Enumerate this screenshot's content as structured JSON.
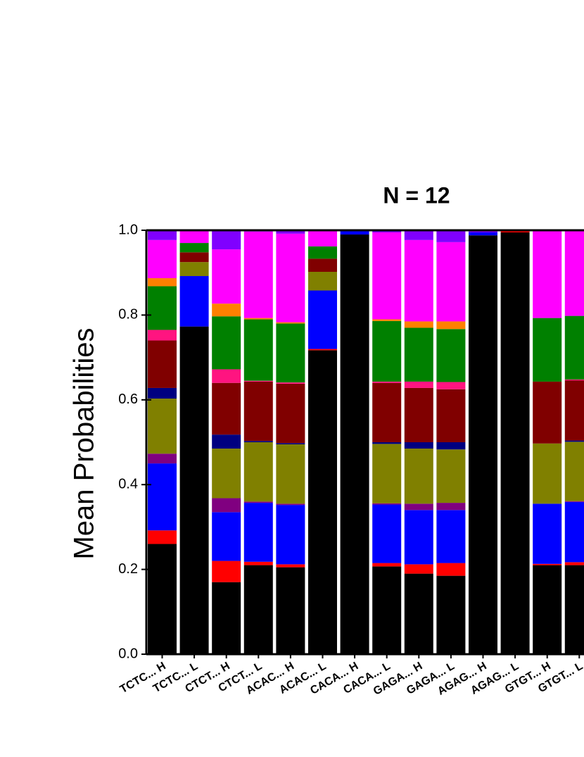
{
  "chart_data": {
    "type": "stacked_bar",
    "title": "N = 12",
    "ylabel": "Mean Probabilities",
    "categories": [
      "TCTC... H",
      "TCTC... L",
      "CTCT... H",
      "CTCT... L",
      "ACAC... H",
      "ACAC... L",
      "CACA... H",
      "CACA... L",
      "GAGA... H",
      "GAGA... L",
      "AGAG... H",
      "AGAG... L",
      "GTGT... H",
      "GTGT... L"
    ],
    "ylim": [
      0,
      1
    ],
    "yticks": [
      {
        "value": 0,
        "label": "0.0"
      },
      0.2,
      0.4,
      0.6,
      0.8,
      {
        "value": 1,
        "label": "1.0"
      }
    ],
    "series": [
      {
        "color": "#000000",
        "values": [
          0.26,
          0.773,
          0.17,
          0.21,
          0.205,
          0.717,
          0.99,
          0.207,
          0.19,
          0.185,
          0.988,
          0.995,
          0.21,
          0.21
        ]
      },
      {
        "color": "#ff0000",
        "values": [
          0.032,
          0,
          0.05,
          0.008,
          0.007,
          0.003,
          0,
          0.008,
          0.022,
          0.03,
          0,
          0.003,
          0.003,
          0.007
        ]
      },
      {
        "color": "#0000ff",
        "values": [
          0.158,
          0.119,
          0.115,
          0.139,
          0.14,
          0.138,
          0.008,
          0.138,
          0.128,
          0.125,
          0.007,
          0,
          0.142,
          0.142
        ]
      },
      {
        "color": "#800080",
        "values": [
          0.023,
          0,
          0.033,
          0.003,
          0.003,
          0,
          0,
          0.003,
          0.015,
          0.017,
          0,
          0,
          0,
          0.002
        ]
      },
      {
        "color": "#808000",
        "values": [
          0.13,
          0.033,
          0.117,
          0.14,
          0.14,
          0.044,
          0,
          0.14,
          0.13,
          0.126,
          0,
          0,
          0.142,
          0.14
        ]
      },
      {
        "color": "#000080",
        "values": [
          0.025,
          0,
          0.033,
          0.003,
          0.003,
          0,
          0,
          0.004,
          0.015,
          0.017,
          0,
          0,
          0,
          0.003
        ]
      },
      {
        "color": "#800000",
        "values": [
          0.112,
          0.023,
          0.122,
          0.14,
          0.14,
          0.031,
          0,
          0.14,
          0.128,
          0.125,
          0,
          0,
          0.146,
          0.142
        ]
      },
      {
        "color": "#ff1480",
        "values": [
          0.025,
          0,
          0.032,
          0.002,
          0.003,
          0,
          0,
          0.003,
          0.015,
          0.017,
          0,
          0,
          0,
          0.002
        ]
      },
      {
        "color": "#008000",
        "values": [
          0.103,
          0.022,
          0.125,
          0.145,
          0.139,
          0.029,
          0,
          0.143,
          0.127,
          0.125,
          0,
          0,
          0.15,
          0.15
        ]
      },
      {
        "color": "#ff8000",
        "values": [
          0.019,
          0,
          0.03,
          0.003,
          0.003,
          0,
          0,
          0.004,
          0.015,
          0.018,
          0,
          0,
          0,
          0
        ]
      },
      {
        "color": "#ff00ff",
        "values": [
          0.09,
          0.03,
          0.128,
          0.204,
          0.209,
          0.038,
          0,
          0.205,
          0.192,
          0.187,
          0,
          0,
          0.207,
          0.202
        ]
      },
      {
        "color": "#8000ff",
        "values": [
          0.023,
          0,
          0.045,
          0.003,
          0.008,
          0,
          0.002,
          0.005,
          0.023,
          0.028,
          0.005,
          0.002,
          0,
          0
        ]
      }
    ]
  }
}
